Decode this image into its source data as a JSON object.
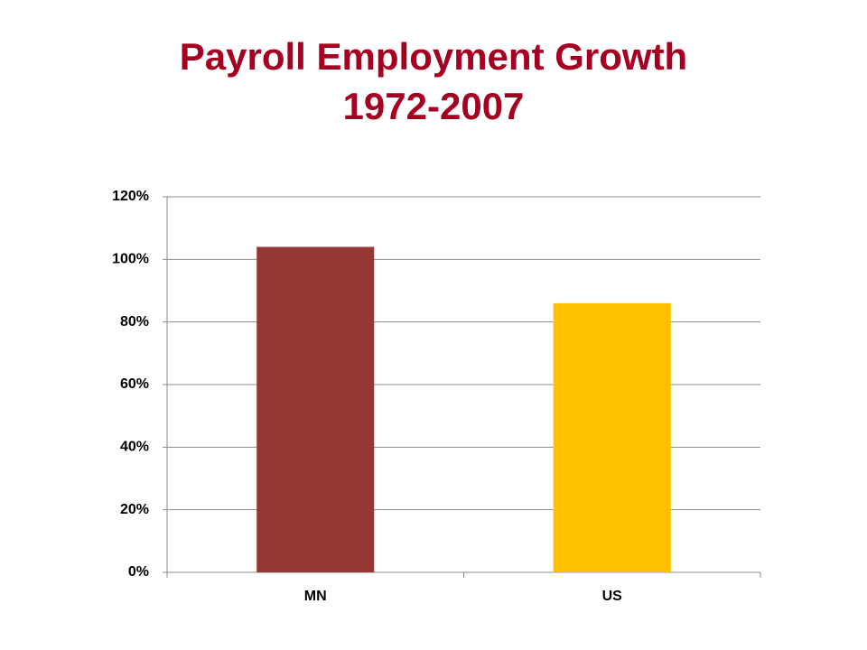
{
  "chart_data": {
    "type": "bar",
    "title": "Payroll Employment Growth",
    "subtitle": "1972-2007",
    "categories": [
      "MN",
      "US"
    ],
    "values": [
      104,
      86
    ],
    "colors": [
      "#953735",
      "#ffc000"
    ],
    "ylim": [
      0,
      120
    ],
    "yticks": [
      {
        "value": 0,
        "label": "0%"
      },
      {
        "value": 20,
        "label": "20%"
      },
      {
        "value": 40,
        "label": "40%"
      },
      {
        "value": 60,
        "label": "60%"
      },
      {
        "value": 80,
        "label": "80%"
      },
      {
        "value": 100,
        "label": "100%"
      },
      {
        "value": 120,
        "label": "120%"
      }
    ],
    "grid": true
  }
}
